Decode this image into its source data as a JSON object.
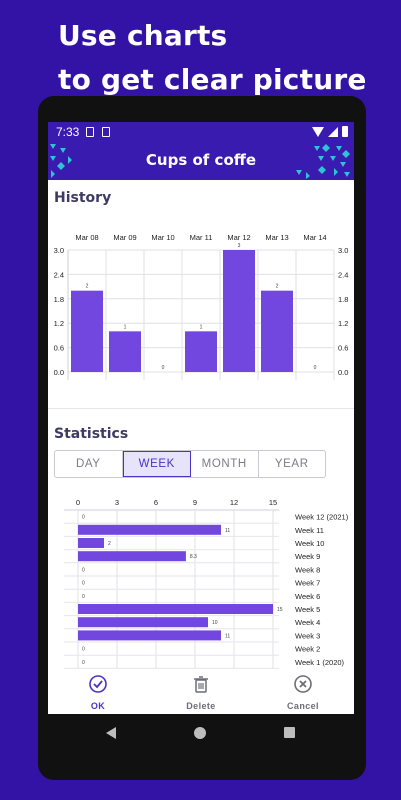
{
  "promo": {
    "line1": "Use charts",
    "line2": "to get clear picture"
  },
  "status_bar": {
    "time": "7:33",
    "icons": [
      "image-icon",
      "sd-card-icon",
      "wifi-icon",
      "signal-icon",
      "battery-icon"
    ]
  },
  "app_bar": {
    "title": "Cups of coffe"
  },
  "history": {
    "title": "History"
  },
  "statistics": {
    "title": "Statistics",
    "tabs": [
      "DAY",
      "WEEK",
      "MONTH",
      "YEAR"
    ],
    "selected_tab": "WEEK"
  },
  "bottom_bar": {
    "ok_label": "OK",
    "delete_label": "Delete",
    "cancel_label": "Cancel"
  },
  "colors": {
    "background": "#3313a6",
    "app_bar": "#3a1bb0",
    "bar": "#7147e0",
    "accent": "#4a33c4",
    "deco": "#2ec4d6"
  },
  "chart_data": [
    {
      "type": "bar",
      "categories": [
        "Mar 08",
        "Mar 09",
        "Mar 10",
        "Mar 11",
        "Mar 12",
        "Mar 13",
        "Mar 14"
      ],
      "values": [
        2,
        1,
        0,
        1,
        3,
        2,
        0
      ],
      "data_labels": [
        "2",
        "1",
        "0",
        "1",
        "3",
        "2",
        "0"
      ],
      "title": "",
      "xlabel": "",
      "ylabel": "",
      "ylim": [
        0,
        3
      ],
      "y_ticks": [
        "0.0",
        "0.6",
        "1.2",
        "1.8",
        "2.4",
        "3.0"
      ],
      "x_axis_position": "top",
      "y_axis": "both sides",
      "grid": true
    },
    {
      "type": "bar",
      "orientation": "horizontal",
      "categories": [
        "Week 12 (2021)",
        "Week 11",
        "Week 10",
        "Week 9",
        "Week 8",
        "Week 7",
        "Week 6",
        "Week 5",
        "Week 4",
        "Week 3",
        "Week 2",
        "Week 1 (2020)"
      ],
      "values": [
        0,
        11,
        2,
        8.3,
        0,
        0,
        0,
        15,
        10,
        11,
        0,
        0
      ],
      "data_labels": [
        "0",
        "11",
        "2",
        "8.3",
        "0",
        "0",
        "0",
        "15",
        "10",
        "11",
        "0",
        "0"
      ],
      "title": "",
      "xlabel": "",
      "ylabel": "",
      "xlim": [
        0,
        15
      ],
      "x_ticks": [
        "0",
        "3",
        "6",
        "9",
        "12",
        "15"
      ],
      "x_axis_position": "top",
      "category_labels_position": "right",
      "grid": true
    }
  ]
}
